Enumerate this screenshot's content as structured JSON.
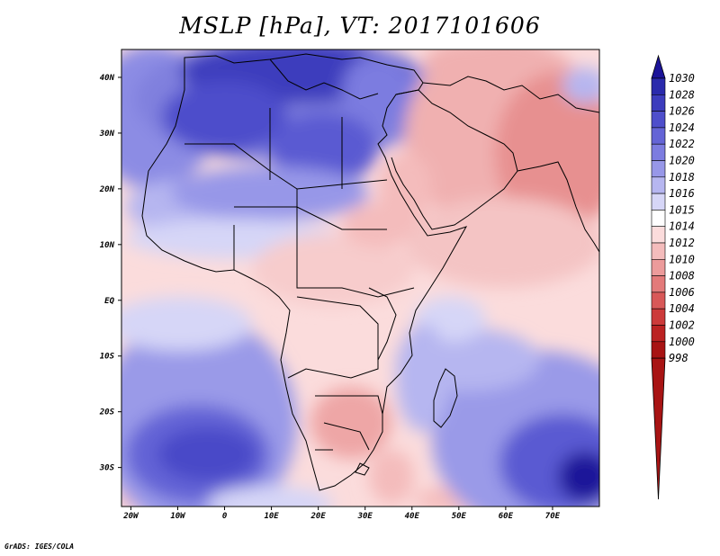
{
  "title": "MSLP [hPa], VT: 2017101606",
  "footer": "GrADS: IGES/COLA",
  "map": {
    "lat_labels": [
      "40N",
      "30N",
      "20N",
      "10N",
      "EQ",
      "10S",
      "20S",
      "30S"
    ],
    "lat_values": [
      40,
      30,
      20,
      10,
      0,
      -10,
      -20,
      -30
    ],
    "lon_labels": [
      "20W",
      "10W",
      "0",
      "10E",
      "20E",
      "30E",
      "40E",
      "50E",
      "60E",
      "70E"
    ],
    "lon_values": [
      -20,
      -10,
      0,
      10,
      20,
      30,
      40,
      50,
      60,
      70
    ],
    "lon_range": [
      -22,
      80
    ],
    "lat_range": [
      -37,
      45
    ]
  },
  "colorbar": {
    "levels": [
      "1030",
      "1028",
      "1026",
      "1024",
      "1022",
      "1020",
      "1018",
      "1016",
      "1015",
      "1014",
      "1012",
      "1010",
      "1008",
      "1006",
      "1004",
      "1002",
      "1000",
      "998"
    ],
    "colors": [
      "#1c1499",
      "#2a2aac",
      "#3c3cbd",
      "#4e4ecb",
      "#6464d6",
      "#7c7ce0",
      "#9797e8",
      "#b6b6f0",
      "#d6d6f7",
      "#ffffff",
      "#fbdcdc",
      "#f4bcbc",
      "#ec9b9b",
      "#e37a7a",
      "#d85858",
      "#cc3a3a",
      "#bb2222",
      "#a81414"
    ]
  }
}
